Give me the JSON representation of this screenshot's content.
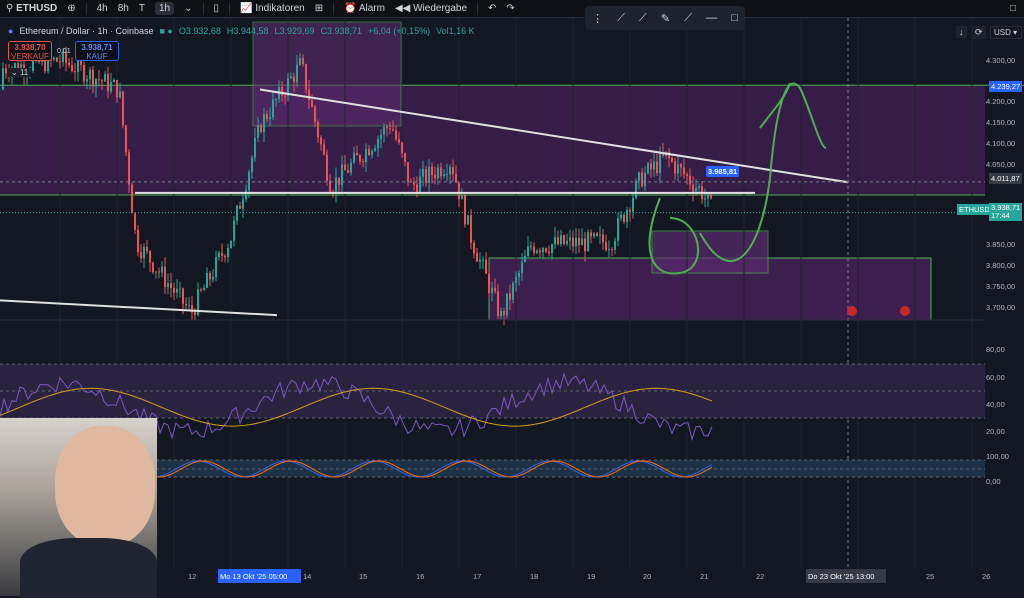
{
  "toolbar": {
    "symbol": "ETHUSD",
    "intervals": [
      "4h",
      "8h",
      "T",
      "1h"
    ],
    "active_interval": "1h",
    "indicators": "Indikatoren",
    "alarm": "Alarm",
    "replay": "Wiedergabe"
  },
  "legend": {
    "title": "Ethereum / Dollar · 1h · Coinbase",
    "open": "O3.932,68",
    "high": "H3.944,58",
    "low": "L3.929,69",
    "close": "C3.938,71",
    "change": "+6,04 (+0,15%)",
    "volume": "Vol1,16 K"
  },
  "sell": {
    "price": "3.938,70",
    "label": "VERKAUF"
  },
  "spread": "0,01",
  "buy": {
    "price": "3.938,71",
    "label": "KAUF"
  },
  "collapse": "11",
  "currency": "USD",
  "price_axis": [
    "4.300,00",
    "4.200,00",
    "4.150,00",
    "4.100,00",
    "4.050,00",
    "3.850,00",
    "3.800,00",
    "3.750,00",
    "3.700,00"
  ],
  "tags": {
    "blue": "4.239,27",
    "gray": "4.011,87",
    "symbol": "ETHUSD",
    "last": "3.938,71",
    "countdown": "17:44",
    "annotation": "3.985,81"
  },
  "rsi_axis": [
    "80,00",
    "60,00",
    "40,00",
    "20,00"
  ],
  "stoch_axis": [
    "100,00",
    "0,00"
  ],
  "time_axis": [
    "12",
    "14",
    "15",
    "16",
    "17",
    "18",
    "19",
    "20",
    "21",
    "22",
    "25",
    "26"
  ],
  "time_highlight_start": "Mo 13 Okt '25  05:00",
  "time_highlight_end": "Do 23 Okt '25  13:00",
  "colors": {
    "up": "#26a69a",
    "down": "#ef5350",
    "zone": "#5b2a6e",
    "accent": "#2962ff"
  }
}
